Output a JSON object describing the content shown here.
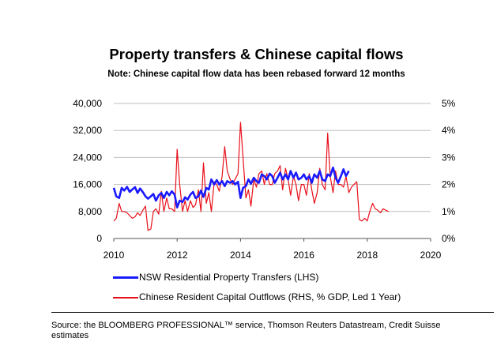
{
  "chart_data": {
    "type": "line",
    "title": "Property transfers & Chinese capital flows",
    "subtitle": "Note: Chinese capital flow data has been rebased forward 12 months",
    "x_ticks": [
      "2010",
      "2012",
      "2014",
      "2016",
      "2018",
      "2020"
    ],
    "xlim": [
      2010,
      2020
    ],
    "y_left_ticks": [
      "0",
      "8,000",
      "16,000",
      "24,000",
      "32,000",
      "40,000"
    ],
    "y_left_lim": [
      0,
      40000
    ],
    "y_right_ticks": [
      "0%",
      "1%",
      "2%",
      "3%",
      "4%",
      "5%"
    ],
    "y_right_lim": [
      0,
      5
    ],
    "series": [
      {
        "name": "NSW Residential Property Transfers (LHS)",
        "axis": "left",
        "color": "#1a1aff",
        "x": [
          2010.0,
          2010.08,
          2010.17,
          2010.25,
          2010.33,
          2010.42,
          2010.5,
          2010.58,
          2010.67,
          2010.75,
          2010.83,
          2010.92,
          2011.0,
          2011.08,
          2011.17,
          2011.25,
          2011.33,
          2011.42,
          2011.5,
          2011.58,
          2011.67,
          2011.75,
          2011.83,
          2011.92,
          2012.0,
          2012.08,
          2012.17,
          2012.25,
          2012.33,
          2012.42,
          2012.5,
          2012.58,
          2012.67,
          2012.75,
          2012.83,
          2012.92,
          2013.0,
          2013.08,
          2013.17,
          2013.25,
          2013.33,
          2013.42,
          2013.5,
          2013.58,
          2013.67,
          2013.75,
          2013.83,
          2013.92,
          2014.0,
          2014.08,
          2014.17,
          2014.25,
          2014.33,
          2014.42,
          2014.5,
          2014.58,
          2014.67,
          2014.75,
          2014.83,
          2014.92,
          2015.0,
          2015.08,
          2015.17,
          2015.25,
          2015.33,
          2015.42,
          2015.5,
          2015.58,
          2015.67,
          2015.75,
          2015.83,
          2015.92,
          2016.0,
          2016.08,
          2016.17,
          2016.25,
          2016.33,
          2016.42,
          2016.5,
          2016.58,
          2016.67,
          2016.75,
          2016.83,
          2016.92,
          2017.0,
          2017.08,
          2017.17,
          2017.25,
          2017.33,
          2017.42
        ],
        "values": [
          15000,
          12500,
          12000,
          15000,
          14200,
          15300,
          13800,
          14500,
          15200,
          13500,
          14800,
          13700,
          12500,
          11800,
          12500,
          13200,
          11200,
          12800,
          13500,
          12000,
          13800,
          12800,
          14000,
          13000,
          9200,
          11200,
          10800,
          12200,
          11500,
          13000,
          13800,
          12000,
          12500,
          14200,
          12300,
          15000,
          14500,
          17500,
          16000,
          17300,
          16000,
          17000,
          15500,
          17000,
          16500,
          17000,
          16000,
          16800,
          12000,
          15000,
          15500,
          17500,
          16200,
          18000,
          17000,
          16500,
          19000,
          18500,
          17500,
          19200,
          18500,
          16500,
          18000,
          19500,
          17500,
          19000,
          17500,
          20000,
          18000,
          19500,
          17500,
          18000,
          19000,
          17500,
          18500,
          16500,
          19000,
          18000,
          20000,
          17500,
          17000,
          19000,
          18500,
          21000,
          18000,
          16500,
          18500,
          20500,
          18500,
          20000
        ]
      },
      {
        "name": "Chinese Resident Capital Outflows (RHS, % GDP, Led 1 Year)",
        "axis": "right",
        "color": "#e8101a",
        "x": [
          2010.0,
          2010.08,
          2010.17,
          2010.25,
          2010.33,
          2010.42,
          2010.5,
          2010.58,
          2010.67,
          2010.75,
          2010.83,
          2010.92,
          2011.0,
          2011.08,
          2011.17,
          2011.25,
          2011.33,
          2011.42,
          2011.5,
          2011.58,
          2011.67,
          2011.75,
          2011.83,
          2011.92,
          2012.0,
          2012.08,
          2012.17,
          2012.25,
          2012.33,
          2012.42,
          2012.5,
          2012.58,
          2012.67,
          2012.75,
          2012.83,
          2012.92,
          2013.0,
          2013.08,
          2013.17,
          2013.25,
          2013.33,
          2013.42,
          2013.5,
          2013.58,
          2013.67,
          2013.75,
          2013.83,
          2013.92,
          2014.0,
          2014.08,
          2014.17,
          2014.25,
          2014.33,
          2014.42,
          2014.5,
          2014.58,
          2014.67,
          2014.75,
          2014.83,
          2014.92,
          2015.0,
          2015.08,
          2015.17,
          2015.25,
          2015.33,
          2015.42,
          2015.5,
          2015.58,
          2015.67,
          2015.75,
          2015.83,
          2015.92,
          2016.0,
          2016.08,
          2016.17,
          2016.25,
          2016.33,
          2016.42,
          2016.5,
          2016.58,
          2016.67,
          2016.75,
          2016.83,
          2016.92,
          2017.0,
          2017.08,
          2017.17,
          2017.25,
          2017.33,
          2017.42,
          2017.5,
          2017.58,
          2017.67,
          2017.75,
          2017.83,
          2017.92,
          2018.0,
          2018.08,
          2018.17,
          2018.25,
          2018.33,
          2018.42,
          2018.5,
          2018.58,
          2018.67
        ],
        "values": [
          0.65,
          0.75,
          1.3,
          1.0,
          1.0,
          0.95,
          0.85,
          0.75,
          0.8,
          0.95,
          0.85,
          1.05,
          1.2,
          0.3,
          0.35,
          1.0,
          1.1,
          0.9,
          1.75,
          1.0,
          1.5,
          1.1,
          1.1,
          1.0,
          3.3,
          2.0,
          1.0,
          1.4,
          1.0,
          1.4,
          1.15,
          1.25,
          1.8,
          1.0,
          2.8,
          1.3,
          1.7,
          1.0,
          2.1,
          2.0,
          1.75,
          2.3,
          3.4,
          2.5,
          2.2,
          2.0,
          2.2,
          2.4,
          4.3,
          3.0,
          1.5,
          1.8,
          1.2,
          2.2,
          1.9,
          2.4,
          2.5,
          2.0,
          2.4,
          2.0,
          2.0,
          2.4,
          2.5,
          2.7,
          1.8,
          2.6,
          2.2,
          1.6,
          2.3,
          2.0,
          1.4,
          2.0,
          2.0,
          1.6,
          2.4,
          1.8,
          1.3,
          1.7,
          2.6,
          2.0,
          1.8,
          3.9,
          2.3,
          1.7,
          2.5,
          2.0,
          2.0,
          1.9,
          2.3,
          1.7,
          1.9,
          2.0,
          2.1,
          0.7,
          0.65,
          0.75,
          0.65,
          1.0,
          1.3,
          1.1,
          1.05,
          0.95,
          1.1,
          1.05,
          1.0
        ]
      }
    ]
  },
  "legend": {
    "blue_label": "NSW Residential Property Transfers (LHS)",
    "red_label": "Chinese Resident Capital Outflows (RHS, % GDP, Led 1 Year)"
  },
  "source": "Source: the BLOOMBERG PROFESSIONAL™ service, Thomson Reuters Datastream, Credit Suisse estimates"
}
